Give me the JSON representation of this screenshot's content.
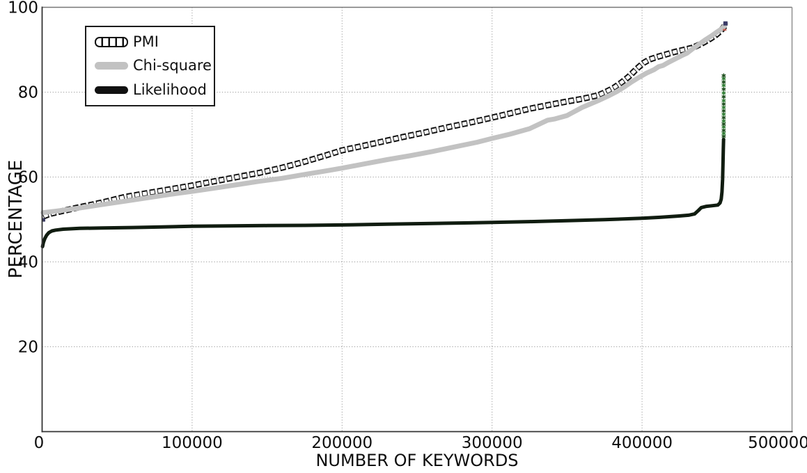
{
  "chart_data": {
    "type": "line",
    "xlabel": "NUMBER OF KEYWORDS",
    "ylabel": "PERCENTAGE",
    "xlim": [
      0,
      500000
    ],
    "ylim": [
      0,
      100
    ],
    "xticks": [
      {
        "v": 0,
        "label": "0"
      },
      {
        "v": 100000,
        "label": "100000"
      },
      {
        "v": 200000,
        "label": "200000"
      },
      {
        "v": 300000,
        "label": "300000"
      },
      {
        "v": 400000,
        "label": "400000"
      },
      {
        "v": 500000,
        "label": "500000"
      }
    ],
    "yticks": [
      {
        "v": 100,
        "label": "100"
      },
      {
        "v": 80,
        "label": "80"
      },
      {
        "v": 60,
        "label": "60"
      },
      {
        "v": 40,
        "label": "40"
      },
      {
        "v": 20,
        "label": "20"
      }
    ],
    "grid": {
      "on": true,
      "style": "dotted",
      "color": "#999999",
      "x_values": [
        100000,
        200000,
        300000,
        400000
      ],
      "y_values": [
        20,
        40,
        60,
        80
      ]
    },
    "legend": {
      "position": "top-left",
      "items": [
        {
          "label": "PMI",
          "swatch": "open-square-chain",
          "color": "#111111"
        },
        {
          "label": "Chi-square",
          "swatch": "thick-line",
          "color": "#c2c2c2"
        },
        {
          "label": "Likelihood",
          "swatch": "thick-line",
          "color": "#111111"
        }
      ]
    },
    "series": [
      {
        "name": "PMI",
        "style": "open-square-chain",
        "color": "#111111",
        "points": [
          [
            800,
            50.7
          ],
          [
            5000,
            51.3
          ],
          [
            15000,
            52.1
          ],
          [
            25000,
            52.9
          ],
          [
            40000,
            54.0
          ],
          [
            55000,
            55.3
          ],
          [
            70000,
            56.2
          ],
          [
            85000,
            57.1
          ],
          [
            100000,
            58.0
          ],
          [
            115000,
            59.0
          ],
          [
            130000,
            60.0
          ],
          [
            145000,
            61.0
          ],
          [
            160000,
            62.2
          ],
          [
            175000,
            63.6
          ],
          [
            190000,
            65.2
          ],
          [
            200000,
            66.3
          ],
          [
            212000,
            67.2
          ],
          [
            225000,
            68.2
          ],
          [
            240000,
            69.4
          ],
          [
            255000,
            70.5
          ],
          [
            270000,
            71.7
          ],
          [
            285000,
            72.8
          ],
          [
            300000,
            74.0
          ],
          [
            312000,
            75.0
          ],
          [
            325000,
            76.1
          ],
          [
            338000,
            77.0
          ],
          [
            350000,
            77.8
          ],
          [
            358000,
            78.3
          ],
          [
            365000,
            78.8
          ],
          [
            371000,
            79.3
          ],
          [
            376000,
            80.1
          ],
          [
            381000,
            81.0
          ],
          [
            386000,
            82.2
          ],
          [
            391000,
            83.6
          ],
          [
            395000,
            85.0
          ],
          [
            398000,
            86.0
          ],
          [
            401000,
            86.9
          ],
          [
            405000,
            87.7
          ],
          [
            410000,
            88.3
          ],
          [
            416000,
            88.9
          ],
          [
            422000,
            89.5
          ],
          [
            428000,
            90.0
          ],
          [
            434000,
            90.5
          ],
          [
            440000,
            91.5
          ],
          [
            445000,
            92.5
          ],
          [
            449000,
            93.4
          ],
          [
            452000,
            94.3
          ],
          [
            454000,
            95.1
          ],
          [
            455300,
            95.7
          ]
        ]
      },
      {
        "name": "Chi-square",
        "style": "line",
        "color": "#c2c2c2",
        "width": 7,
        "points": [
          [
            600,
            51.6
          ],
          [
            10000,
            52.0
          ],
          [
            25000,
            52.7
          ],
          [
            40000,
            53.5
          ],
          [
            55000,
            54.3
          ],
          [
            70000,
            55.1
          ],
          [
            85000,
            55.9
          ],
          [
            100000,
            56.6
          ],
          [
            115000,
            57.4
          ],
          [
            130000,
            58.2
          ],
          [
            145000,
            59.0
          ],
          [
            160000,
            59.7
          ],
          [
            175000,
            60.6
          ],
          [
            190000,
            61.5
          ],
          [
            200000,
            62.1
          ],
          [
            215000,
            63.1
          ],
          [
            230000,
            64.1
          ],
          [
            245000,
            65.0
          ],
          [
            260000,
            66.0
          ],
          [
            275000,
            67.1
          ],
          [
            290000,
            68.2
          ],
          [
            300000,
            69.1
          ],
          [
            312000,
            70.1
          ],
          [
            325000,
            71.4
          ],
          [
            337000,
            73.4
          ],
          [
            342000,
            73.7
          ],
          [
            350000,
            74.5
          ],
          [
            360000,
            76.4
          ],
          [
            366000,
            77.3
          ],
          [
            372000,
            78.2
          ],
          [
            378000,
            79.2
          ],
          [
            383000,
            80.1
          ],
          [
            388000,
            81.2
          ],
          [
            393000,
            82.4
          ],
          [
            398000,
            83.5
          ],
          [
            403000,
            84.5
          ],
          [
            408000,
            85.3
          ],
          [
            411000,
            86.0
          ],
          [
            414000,
            86.3
          ],
          [
            418000,
            87.1
          ],
          [
            423000,
            88.0
          ],
          [
            427000,
            88.7
          ],
          [
            430000,
            89.2
          ],
          [
            434000,
            90.3
          ],
          [
            438000,
            91.3
          ],
          [
            442000,
            92.3
          ],
          [
            446000,
            93.2
          ],
          [
            450000,
            94.2
          ],
          [
            453000,
            94.9
          ],
          [
            455000,
            95.6
          ],
          [
            455800,
            96.1
          ]
        ]
      },
      {
        "name": "Likelihood",
        "style": "line",
        "color": "#101c10",
        "width": 5,
        "points": [
          [
            300,
            43.6
          ],
          [
            900,
            44.6
          ],
          [
            1800,
            45.5
          ],
          [
            3000,
            46.3
          ],
          [
            4500,
            46.9
          ],
          [
            6500,
            47.3
          ],
          [
            9000,
            47.5
          ],
          [
            14000,
            47.7
          ],
          [
            25000,
            47.9
          ],
          [
            40000,
            48.0
          ],
          [
            60000,
            48.1
          ],
          [
            80000,
            48.25
          ],
          [
            100000,
            48.4
          ],
          [
            125000,
            48.5
          ],
          [
            150000,
            48.55
          ],
          [
            175000,
            48.6
          ],
          [
            200000,
            48.7
          ],
          [
            230000,
            48.9
          ],
          [
            260000,
            49.05
          ],
          [
            285000,
            49.2
          ],
          [
            300000,
            49.3
          ],
          [
            325000,
            49.5
          ],
          [
            350000,
            49.7
          ],
          [
            375000,
            49.95
          ],
          [
            400000,
            50.3
          ],
          [
            412000,
            50.5
          ],
          [
            424000,
            50.8
          ],
          [
            431000,
            51.0
          ],
          [
            435000,
            51.3
          ],
          [
            437500,
            52.1
          ],
          [
            439500,
            52.8
          ],
          [
            443000,
            53.1
          ],
          [
            447000,
            53.25
          ],
          [
            450500,
            53.4
          ],
          [
            452000,
            53.9
          ],
          [
            452800,
            54.8
          ],
          [
            453300,
            56.5
          ],
          [
            453700,
            59.5
          ],
          [
            454000,
            63.5
          ],
          [
            454200,
            66.5
          ],
          [
            454350,
            68.9
          ]
        ]
      },
      {
        "name": "Likelihood-tail-star-markers",
        "style": "stars",
        "color": "#1d4d1d",
        "color2": "#2e7d32",
        "points": [
          [
            454450,
            69.6
          ],
          [
            454450,
            70.3
          ],
          [
            454450,
            71.0
          ],
          [
            454450,
            71.8
          ],
          [
            454450,
            72.5
          ],
          [
            454450,
            73.2
          ],
          [
            454450,
            74.0
          ],
          [
            454450,
            74.8
          ],
          [
            454450,
            75.6
          ],
          [
            454450,
            76.4
          ],
          [
            454450,
            77.2
          ],
          [
            454450,
            78.0
          ],
          [
            454450,
            78.9
          ],
          [
            454450,
            79.8
          ],
          [
            454450,
            80.7
          ],
          [
            454450,
            81.6
          ],
          [
            454450,
            82.4
          ],
          [
            454450,
            83.2
          ],
          [
            454450,
            83.9
          ]
        ]
      }
    ],
    "annotations": {
      "markers": [
        {
          "name": "pmi-start-marker",
          "shape": "square",
          "x": 900,
          "y": 49.9,
          "size": 5,
          "color": "#39395f"
        },
        {
          "name": "series-end-marker",
          "shape": "square",
          "x": 455600,
          "y": 96.2,
          "size": 6,
          "color": "#3a3a66"
        },
        {
          "name": "series-end-red-fleck",
          "shape": "dash",
          "x": 455100,
          "y": 94.7,
          "size": 5,
          "color": "#c25a50"
        }
      ]
    }
  }
}
